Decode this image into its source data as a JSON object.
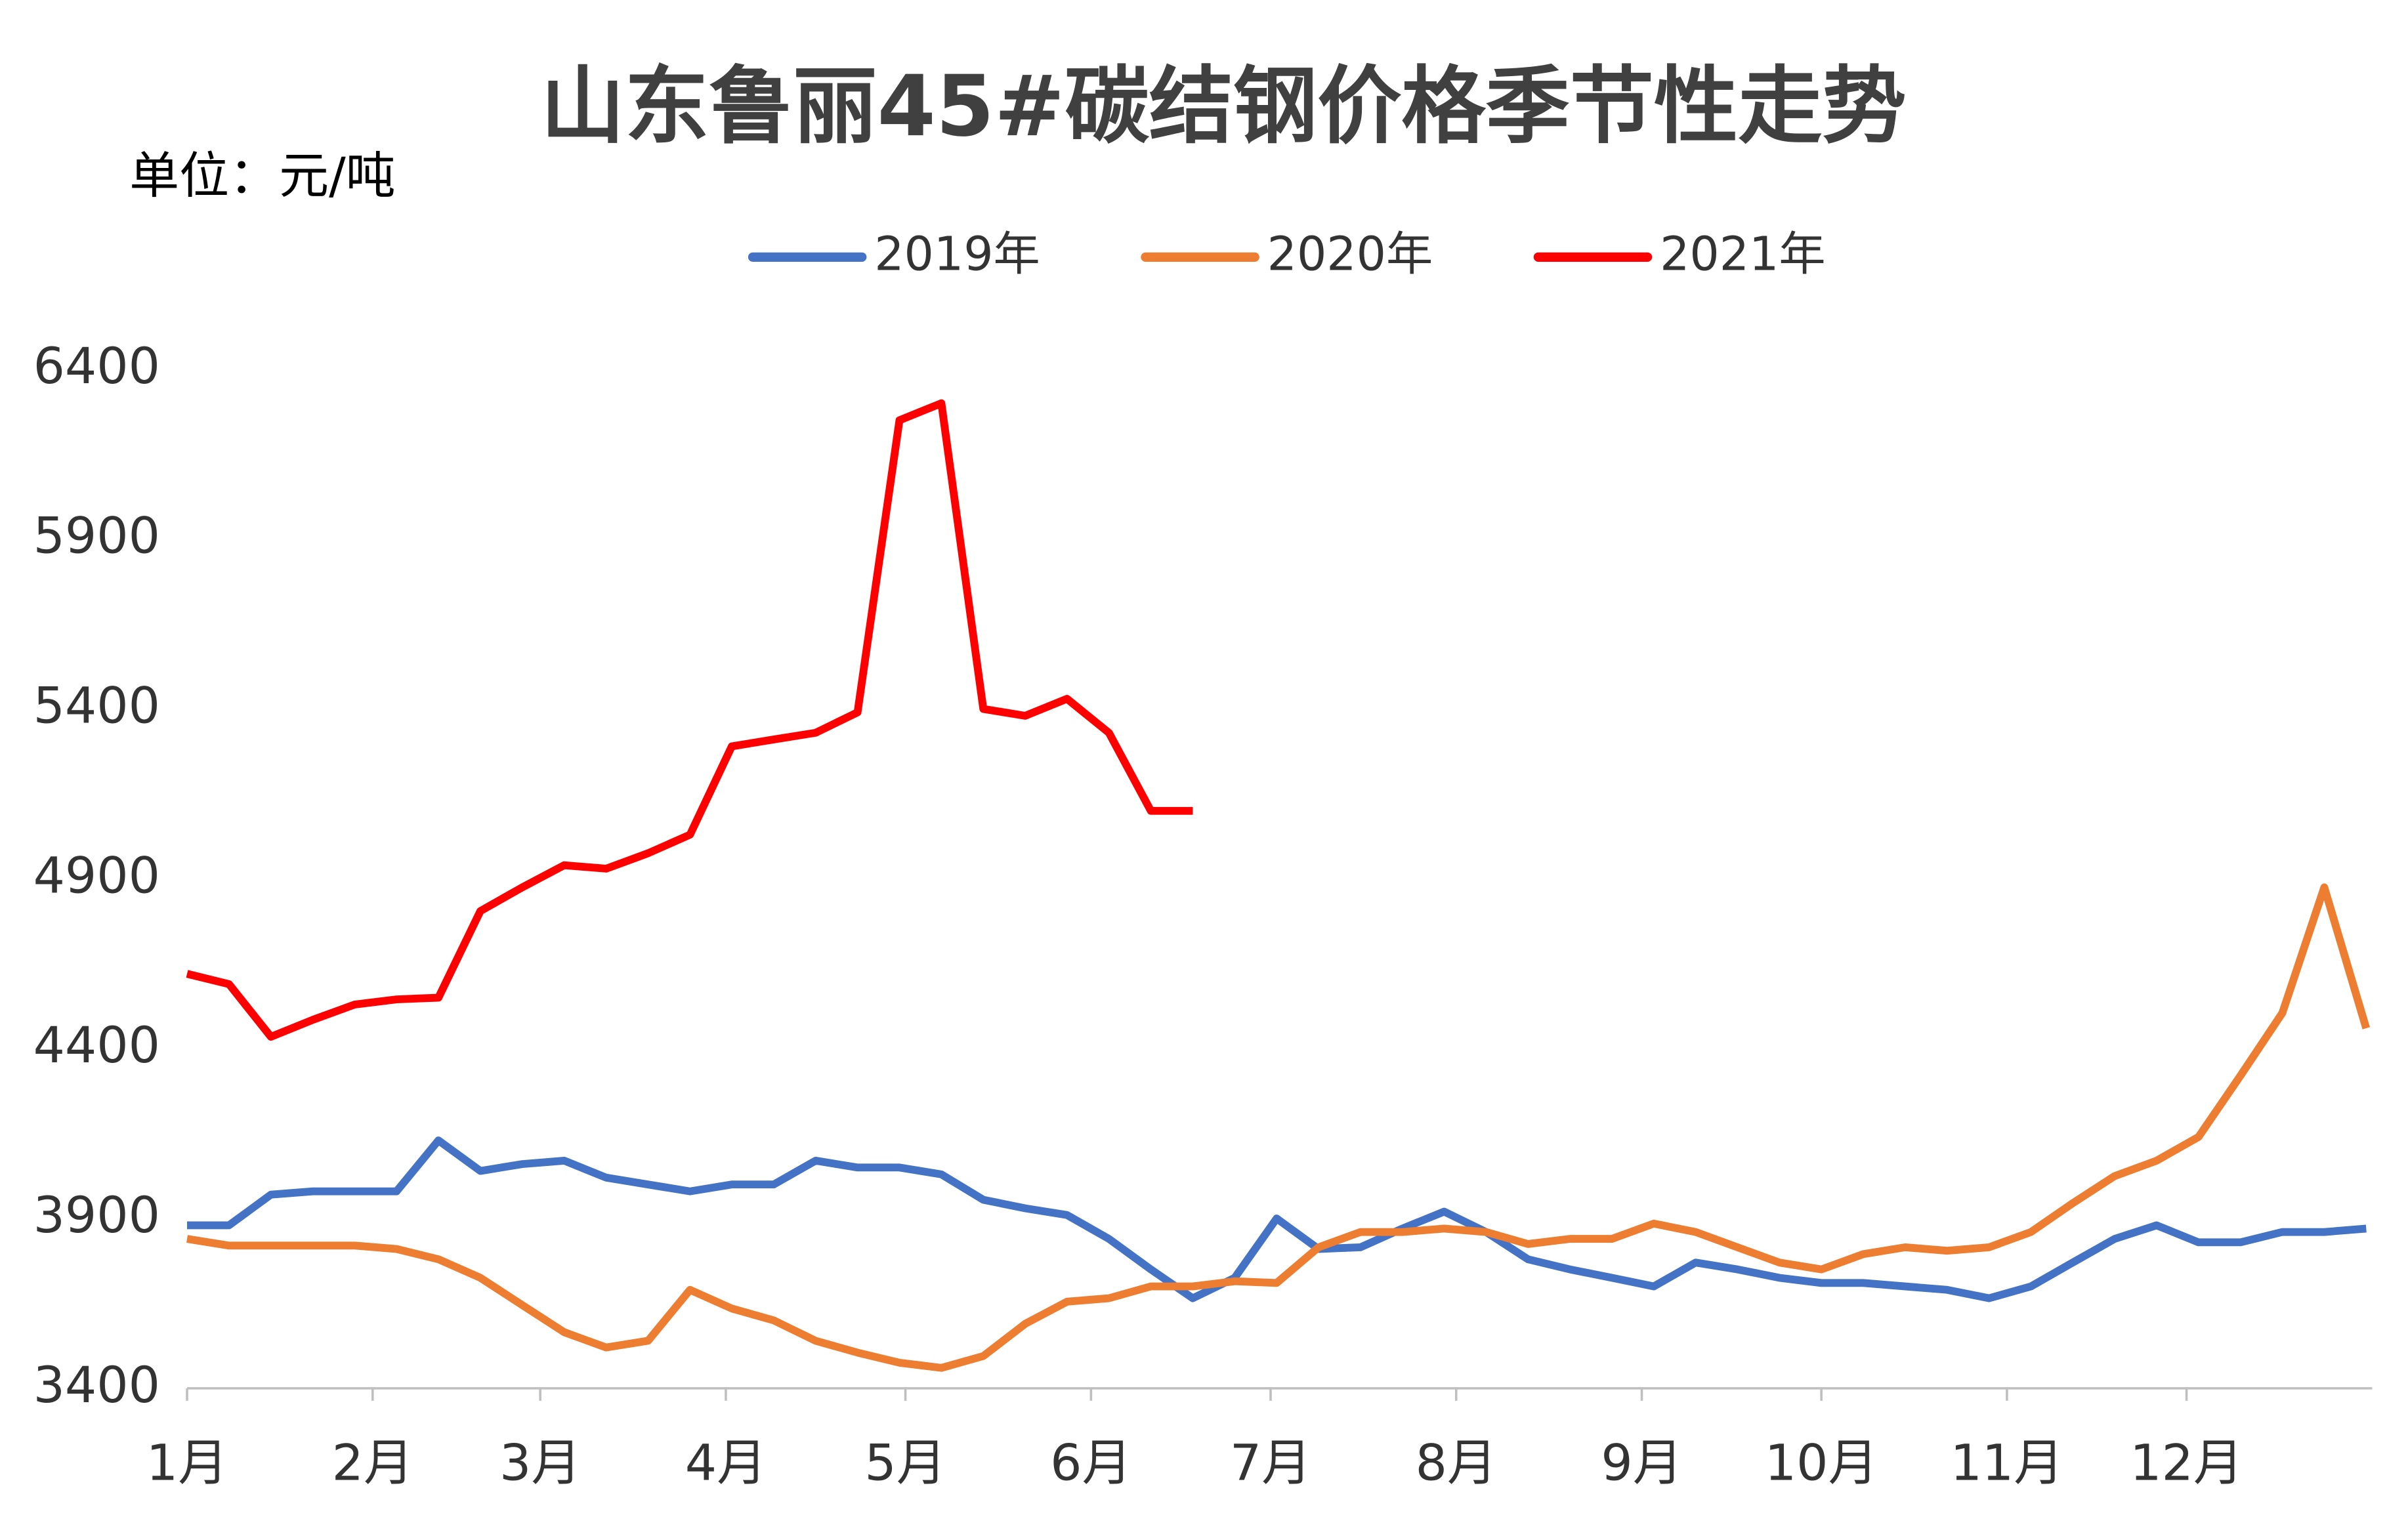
{
  "chart_data": {
    "type": "line",
    "title": "山东鲁丽45#碳结钢价格季节性走势",
    "unit_label": "单位：元/吨",
    "x": [
      1,
      8,
      15,
      22,
      29,
      36,
      43,
      50,
      57,
      64,
      71,
      78,
      85,
      92,
      99,
      106,
      113,
      120,
      127,
      134,
      141,
      148,
      155,
      162,
      169,
      176,
      183,
      190,
      197,
      204,
      211,
      218,
      225,
      232,
      239,
      246,
      253,
      260,
      267,
      274,
      281,
      288,
      295,
      302,
      309,
      316,
      323,
      330,
      337,
      344,
      351,
      358,
      365
    ],
    "xlim": [
      1,
      366
    ],
    "xticks": [
      {
        "value": 1,
        "label": "1月"
      },
      {
        "value": 32,
        "label": "2月"
      },
      {
        "value": 60,
        "label": "3月"
      },
      {
        "value": 91,
        "label": "4月"
      },
      {
        "value": 121,
        "label": "5月"
      },
      {
        "value": 152,
        "label": "6月"
      },
      {
        "value": 182,
        "label": "7月"
      },
      {
        "value": 213,
        "label": "8月"
      },
      {
        "value": 244,
        "label": "9月"
      },
      {
        "value": 274,
        "label": "10月"
      },
      {
        "value": 305,
        "label": "11月"
      },
      {
        "value": 335,
        "label": "12月"
      }
    ],
    "ylim": [
      3400,
      6400
    ],
    "yticks": [
      3400,
      3900,
      4400,
      4900,
      5400,
      5900,
      6400
    ],
    "legend": "top",
    "series": [
      {
        "name": "2019年",
        "color": "#4472c4",
        "values": [
          3880,
          3880,
          3970,
          3980,
          3980,
          3980,
          4130,
          4040,
          4060,
          4070,
          4020,
          4000,
          3980,
          4000,
          4000,
          4070,
          4050,
          4050,
          4030,
          3955,
          3930,
          3910,
          3840,
          3750,
          3665,
          3725,
          3900,
          3810,
          3815,
          3870,
          3920,
          3860,
          3780,
          3750,
          3725,
          3700,
          3770,
          3750,
          3725,
          3710,
          3710,
          3700,
          3690,
          3665,
          3700,
          3770,
          3840,
          3880,
          3830,
          3830,
          3860,
          3860,
          3870
        ]
      },
      {
        "name": "2020年",
        "color": "#ed7d31",
        "values": [
          3840,
          3820,
          3820,
          3820,
          3820,
          3810,
          3780,
          3725,
          3645,
          3565,
          3520,
          3540,
          3690,
          3635,
          3600,
          3540,
          3505,
          3475,
          3460,
          3495,
          3590,
          3655,
          3665,
          3700,
          3700,
          3715,
          3710,
          3815,
          3860,
          3860,
          3870,
          3860,
          3825,
          3840,
          3840,
          3885,
          3860,
          3815,
          3770,
          3750,
          3795,
          3815,
          3805,
          3815,
          3860,
          3945,
          4025,
          4070,
          4140,
          4320,
          4505,
          4875,
          4460
        ]
      },
      {
        "name": "2021年",
        "color": "#ff0000",
        "values": [
          4620,
          4590,
          4435,
          4485,
          4530,
          4545,
          4550,
          4805,
          4875,
          4940,
          4930,
          4975,
          5030,
          5290,
          5310,
          5330,
          5390,
          6250,
          6300,
          5400,
          5380,
          5430,
          5330,
          5100,
          5100,
          null,
          null,
          null,
          null,
          null,
          null,
          null,
          null,
          null,
          null,
          null,
          null,
          null,
          null,
          null,
          null,
          null,
          null,
          null,
          null,
          null,
          null,
          null,
          null,
          null,
          null,
          null,
          null
        ]
      }
    ]
  }
}
